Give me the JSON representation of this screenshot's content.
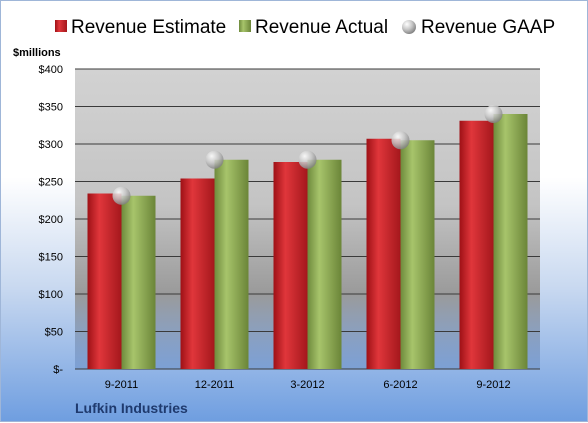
{
  "chart_data": {
    "type": "bar",
    "title": "",
    "unit_label": "$millions",
    "company": "Lufkin Industries",
    "categories": [
      "9-2011",
      "12-2011",
      "3-2012",
      "6-2012",
      "9-2012"
    ],
    "series": [
      {
        "name": "Revenue Estimate",
        "type": "bar",
        "color": "#c81e24",
        "values": [
          234,
          254,
          276,
          307,
          331
        ]
      },
      {
        "name": "Revenue Actual",
        "type": "bar",
        "color": "#8fad55",
        "values": [
          231,
          279,
          279,
          305,
          340
        ]
      },
      {
        "name": "Revenue GAAP",
        "type": "marker",
        "color": "#b8b8b8",
        "values": [
          231,
          279,
          279,
          305,
          340
        ]
      }
    ],
    "y_ticks": [
      "$-",
      "$50",
      "$100",
      "$150",
      "$200",
      "$250",
      "$300",
      "$350",
      "$400"
    ],
    "ylim": [
      0,
      400
    ],
    "legend": "top",
    "grid": true
  }
}
